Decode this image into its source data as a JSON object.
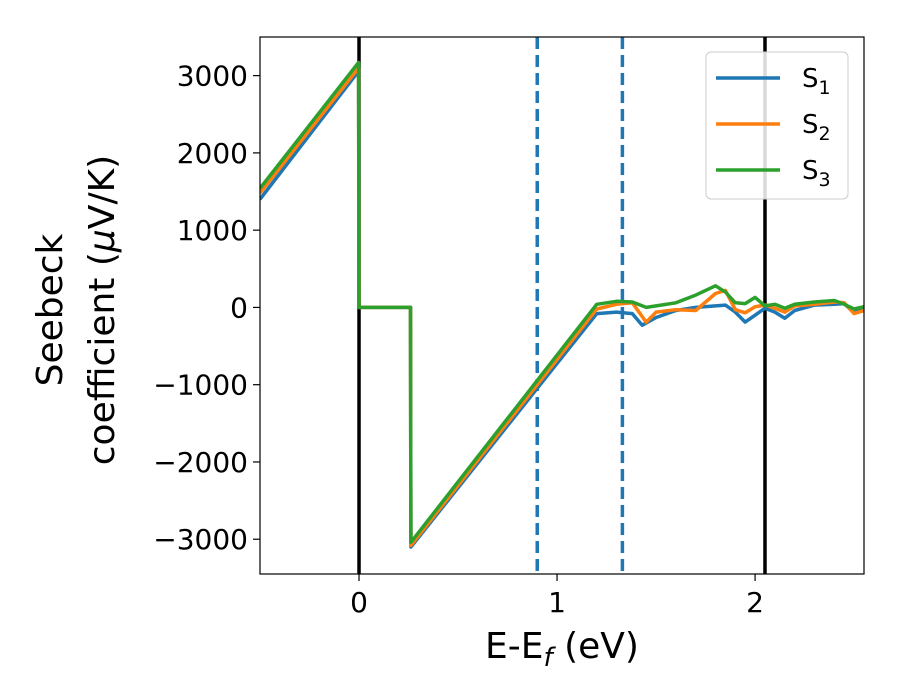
{
  "chart_data": {
    "type": "line",
    "title": "",
    "xlabel": "E-E",
    "xlabel_sub": "f",
    "xlabel_unit": " (eV)",
    "ylabel_line1": "Seebeck",
    "ylabel_line2": "coefficient  (",
    "ylabel_mu": "μ",
    "ylabel_unit": "V/K)",
    "xlim": [
      -0.5,
      2.55
    ],
    "ylim": [
      -3450,
      3500
    ],
    "x_ticks": [
      0,
      1,
      2
    ],
    "x_tick_labels": [
      "0",
      "1",
      "2"
    ],
    "y_ticks": [
      3000,
      2000,
      1000,
      0,
      -1000,
      -2000,
      -3000
    ],
    "y_tick_labels": [
      "3000",
      "2000",
      "1000",
      "0",
      "−1000",
      "−2000",
      "−3000"
    ],
    "grid": false,
    "legend_position": "top-right",
    "vertical_lines": [
      {
        "x": 0.0,
        "style": "solid",
        "color": "#000000"
      },
      {
        "x": 0.9,
        "style": "dashed",
        "color": "#1f77b4"
      },
      {
        "x": 1.33,
        "style": "dashed",
        "color": "#1f77b4"
      },
      {
        "x": 2.05,
        "style": "solid",
        "color": "#000000"
      }
    ],
    "series": [
      {
        "name": "S",
        "sub": "1",
        "color": "#1f77b4",
        "x": [
          -0.5,
          -0.002,
          0.0,
          0.26,
          0.262,
          1.2,
          1.3,
          1.38,
          1.43,
          1.5,
          1.6,
          1.7,
          1.8,
          1.85,
          1.9,
          1.95,
          2.0,
          2.05,
          2.1,
          2.15,
          2.2,
          2.3,
          2.4,
          2.45,
          2.5,
          2.55
        ],
        "y": [
          1400,
          3060,
          0,
          0,
          -3100,
          -80,
          -60,
          -80,
          -230,
          -130,
          -40,
          0,
          20,
          30,
          -60,
          -190,
          -100,
          -10,
          -60,
          -140,
          -40,
          30,
          40,
          50,
          -70,
          -20
        ]
      },
      {
        "name": "S",
        "sub": "2",
        "color": "#ff7f0e",
        "x": [
          -0.5,
          -0.002,
          0.0,
          0.26,
          0.262,
          1.2,
          1.3,
          1.38,
          1.45,
          1.5,
          1.6,
          1.7,
          1.8,
          1.85,
          1.9,
          1.95,
          2.0,
          2.05,
          2.1,
          2.15,
          2.2,
          2.3,
          2.4,
          2.45,
          2.5,
          2.55
        ],
        "y": [
          1480,
          3100,
          0,
          0,
          -3080,
          -20,
          40,
          60,
          -190,
          -60,
          -30,
          -40,
          180,
          220,
          -30,
          -70,
          10,
          30,
          -10,
          -60,
          20,
          40,
          70,
          60,
          -80,
          -40
        ]
      },
      {
        "name": "S",
        "sub": "3",
        "color": "#2ca02c",
        "x": [
          -0.5,
          -0.002,
          0.0,
          0.26,
          0.262,
          1.2,
          1.3,
          1.38,
          1.45,
          1.5,
          1.6,
          1.7,
          1.8,
          1.85,
          1.9,
          1.95,
          2.0,
          2.05,
          2.1,
          2.15,
          2.2,
          2.3,
          2.4,
          2.45,
          2.5,
          2.55
        ],
        "y": [
          1540,
          3170,
          0,
          0,
          -3040,
          40,
          80,
          70,
          0,
          20,
          60,
          160,
          280,
          200,
          60,
          50,
          130,
          20,
          40,
          -10,
          40,
          70,
          90,
          40,
          -20,
          10
        ]
      }
    ]
  }
}
